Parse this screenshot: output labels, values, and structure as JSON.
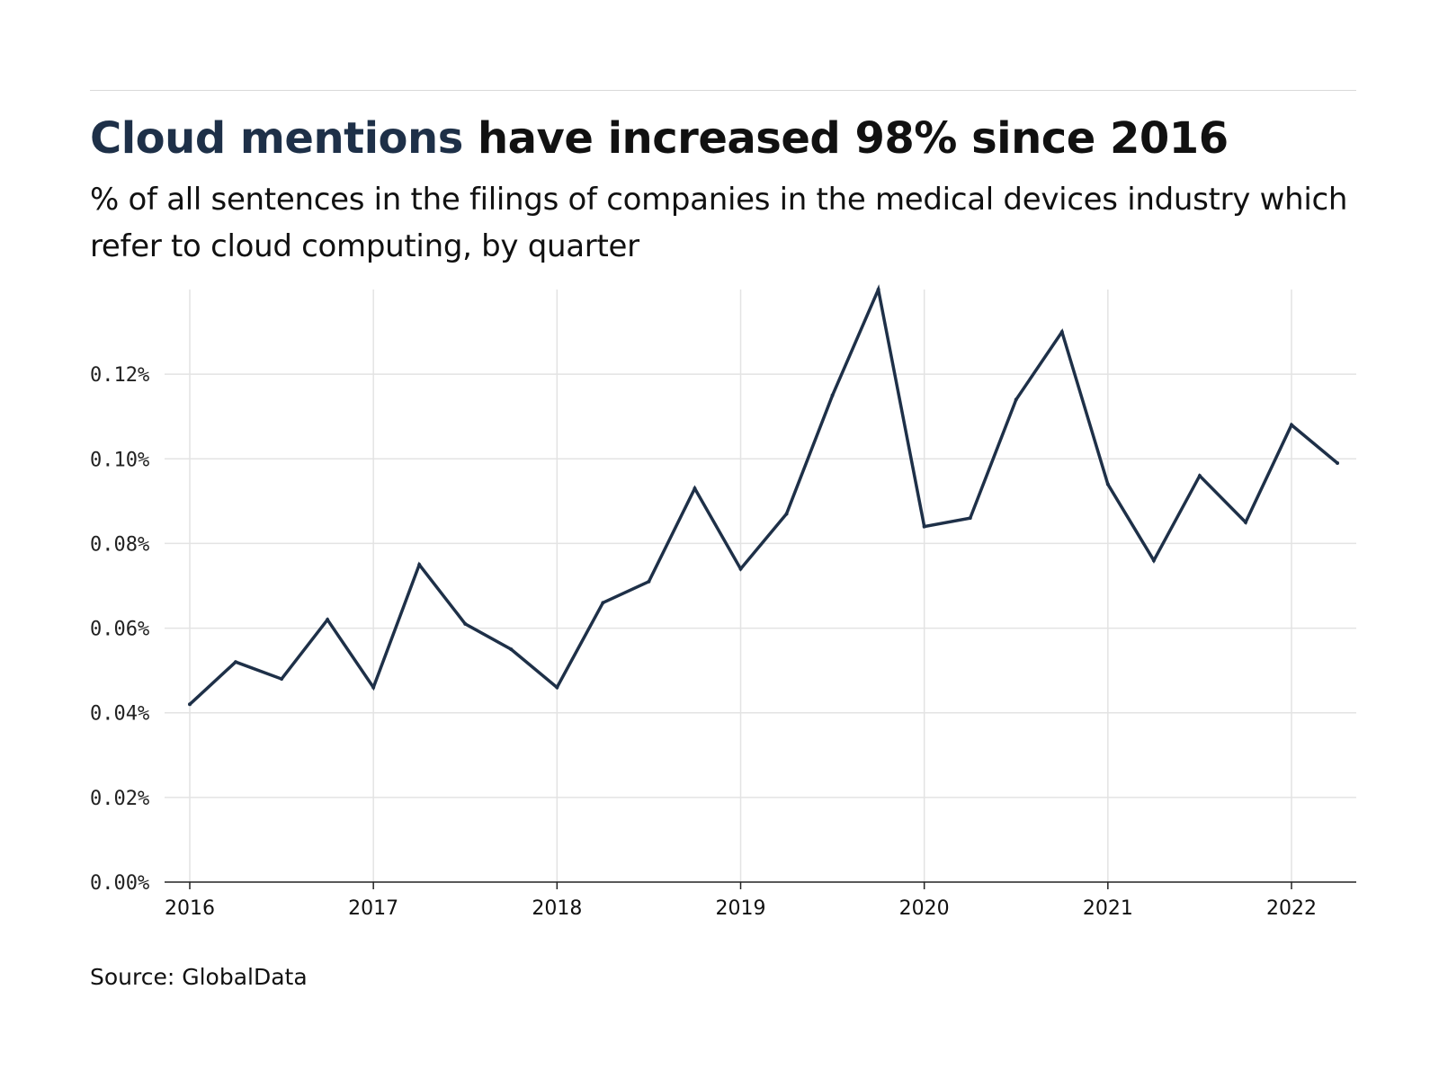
{
  "header": {
    "title_highlight": "Cloud mentions",
    "title_rest": " have increased 98% since 2016",
    "subtitle": "% of all sentences in the filings of companies in the medical devices industry which refer to cloud computing, by quarter"
  },
  "footer": {
    "source": "Source: GlobalData"
  },
  "colors": {
    "line": "#1e3048",
    "grid": "#e3e3e3",
    "axis": "#222222",
    "title_highlight": "#1e3048"
  },
  "chart_data": {
    "type": "line",
    "title": "",
    "xlabel": "",
    "ylabel": "",
    "ylim": [
      0,
      0.14
    ],
    "grid": true,
    "legend": "none",
    "y_ticks": [
      0,
      0.02,
      0.04,
      0.06,
      0.08,
      0.1,
      0.12
    ],
    "y_tick_labels": [
      "0.00%",
      "0.02%",
      "0.04%",
      "0.06%",
      "0.08%",
      "0.10%",
      "0.12%"
    ],
    "x_ticks": [
      2016,
      2017,
      2018,
      2019,
      2020,
      2021,
      2022
    ],
    "x_tick_labels": [
      "2016",
      "2017",
      "2018",
      "2019",
      "2020",
      "2021",
      "2022"
    ],
    "series": [
      {
        "x": [
          2016.0,
          2016.25,
          2016.5,
          2016.75,
          2017.0,
          2017.25,
          2017.5,
          2017.75,
          2018.0,
          2018.25,
          2018.5,
          2018.75,
          2019.0,
          2019.25,
          2019.5,
          2019.75,
          2020.0,
          2020.25,
          2020.5,
          2020.75,
          2021.0,
          2021.25,
          2021.5,
          2021.75,
          2022.0,
          2022.25
        ],
        "values": [
          0.042,
          0.052,
          0.048,
          0.062,
          0.046,
          0.075,
          0.061,
          0.055,
          0.046,
          0.066,
          0.071,
          0.093,
          0.074,
          0.087,
          0.115,
          0.14,
          0.084,
          0.086,
          0.114,
          0.13,
          0.094,
          0.076,
          0.096,
          0.085,
          0.108,
          0.099
        ]
      }
    ]
  }
}
